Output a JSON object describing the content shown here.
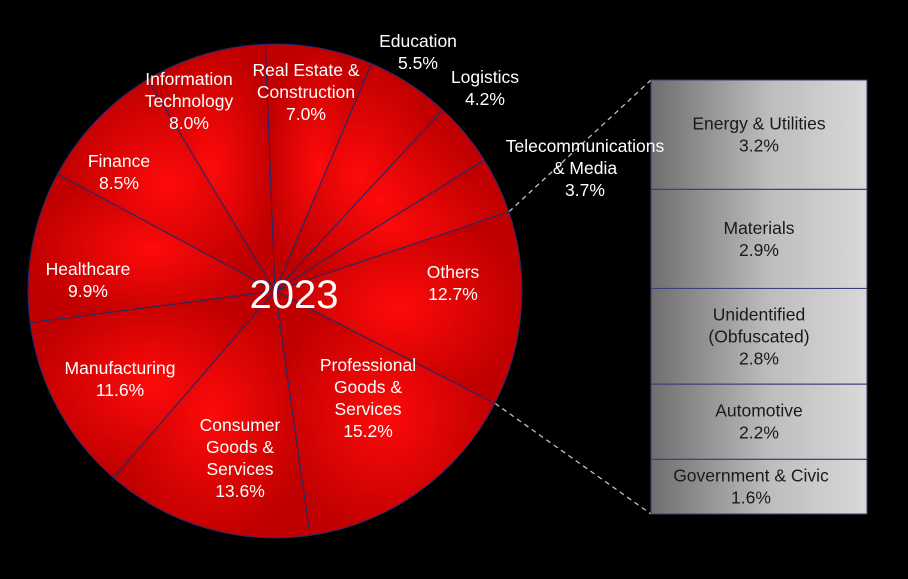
{
  "chart_data": {
    "type": "pie",
    "center_label": "2023",
    "colors": {
      "slice": "#e00000",
      "slice_edge": "#a80000",
      "separator": "#1c2a6e",
      "box_light": "#d9d9d9",
      "box_dark": "#6e6e6e",
      "connector": "#c0c0c0"
    },
    "slices": [
      {
        "name": [
          "Education"
        ],
        "pct": "5.5%",
        "value": 5.5,
        "label_color": "#ffffff"
      },
      {
        "name": [
          "Logistics"
        ],
        "pct": "4.2%",
        "value": 4.2,
        "label_color": "#ffffff"
      },
      {
        "name": [
          "Telecommunications",
          "& Media"
        ],
        "pct": "3.7%",
        "value": 3.7,
        "label_color": "#ffffff"
      },
      {
        "name": [
          "Others"
        ],
        "pct": "12.7%",
        "value": 12.7,
        "label_color": "#ffffff"
      },
      {
        "name": [
          "Professional",
          "Goods &",
          "Services"
        ],
        "pct": "15.2%",
        "value": 15.2,
        "label_color": "#ffffff"
      },
      {
        "name": [
          "Consumer",
          "Goods &",
          "Services"
        ],
        "pct": "13.6%",
        "value": 13.6,
        "label_color": "#ffffff"
      },
      {
        "name": [
          "Manufacturing"
        ],
        "pct": "11.6%",
        "value": 11.6,
        "label_color": "#ffffff"
      },
      {
        "name": [
          "Healthcare"
        ],
        "pct": "9.9%",
        "value": 9.9,
        "label_color": "#ffffff"
      },
      {
        "name": [
          "Finance"
        ],
        "pct": "8.5%",
        "value": 8.5,
        "label_color": "#ffffff"
      },
      {
        "name": [
          "Information",
          "Technology"
        ],
        "pct": "8.0%",
        "value": 8.0,
        "label_color": "#ffffff"
      },
      {
        "name": [
          "Real Estate &",
          "Construction"
        ],
        "pct": "7.0%",
        "value": 7.0,
        "label_color": "#ffffff"
      }
    ],
    "others_breakdown": [
      {
        "name": [
          "Energy & Utilities"
        ],
        "pct": "3.2%",
        "value": 3.2
      },
      {
        "name": [
          "Materials"
        ],
        "pct": "2.9%",
        "value": 2.9
      },
      {
        "name": [
          "Unidentified",
          "(Obfuscated)"
        ],
        "pct": "2.8%",
        "value": 2.8
      },
      {
        "name": [
          "Automotive"
        ],
        "pct": "2.2%",
        "value": 2.2
      },
      {
        "name": [
          "Government & Civic"
        ],
        "pct": "1.6%",
        "value": 1.6
      }
    ]
  }
}
